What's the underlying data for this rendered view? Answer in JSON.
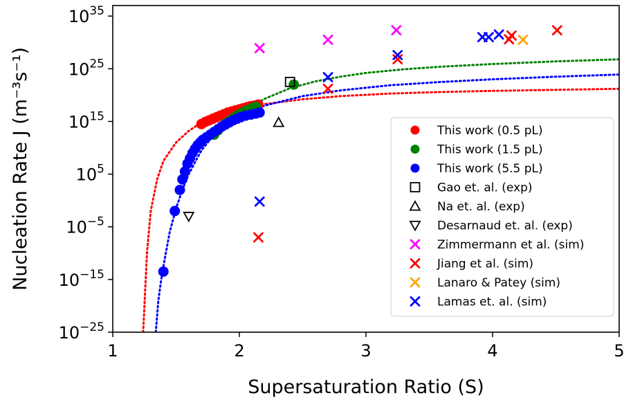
{
  "chart_data": {
    "type": "scatter",
    "title": "",
    "xlabel": "Supersaturation Ratio (S)",
    "ylabel": "Nucleation Rate J (m⁻³s⁻¹)",
    "xlim": [
      1,
      5
    ],
    "ylim_log10": [
      -25,
      37
    ],
    "y_scale": "log",
    "grid": false,
    "legend_position": "lower-right",
    "x_ticks": [
      {
        "value": 1,
        "label": "1"
      },
      {
        "value": 2,
        "label": "2"
      },
      {
        "value": 3,
        "label": "3"
      },
      {
        "value": 4,
        "label": "4"
      },
      {
        "value": 5,
        "label": "5"
      }
    ],
    "y_ticks": [
      {
        "exp": -25,
        "base": "10",
        "sup": "−25"
      },
      {
        "exp": -15,
        "base": "10",
        "sup": "−15"
      },
      {
        "exp": -5,
        "base": "10",
        "sup": "−5"
      },
      {
        "exp": 5,
        "base": "10",
        "sup": "5"
      },
      {
        "exp": 15,
        "base": "10",
        "sup": "15"
      },
      {
        "exp": 25,
        "base": "10",
        "sup": "25"
      },
      {
        "exp": 35,
        "base": "10",
        "sup": "35"
      }
    ],
    "series": [
      {
        "name": "This work (0.5 pL)",
        "marker": "circle",
        "color": "#ff0000",
        "x": [
          1.7,
          1.73,
          1.76,
          1.79,
          1.82,
          1.85,
          1.88,
          1.91,
          1.94,
          1.97,
          2.0,
          2.03,
          2.06,
          2.09,
          2.12,
          2.15
        ],
        "log10_y": [
          14.5,
          14.9,
          15.2,
          15.5,
          15.8,
          16.1,
          16.4,
          16.7,
          16.9,
          17.1,
          17.3,
          17.5,
          17.7,
          17.9,
          18.0,
          18.2
        ]
      },
      {
        "name": "This work (1.5 pL)",
        "marker": "circle",
        "color": "#008000",
        "x": [
          1.8,
          1.83,
          1.86,
          1.89,
          1.92,
          1.95,
          1.98,
          2.01,
          2.04,
          2.07,
          2.1,
          2.13,
          2.43
        ],
        "log10_y": [
          12.5,
          13.3,
          14.0,
          14.6,
          15.1,
          15.6,
          16.1,
          16.5,
          16.9,
          17.2,
          17.5,
          17.8,
          22.0
        ]
      },
      {
        "name": "This work (5.5 pL)",
        "marker": "circle",
        "color": "#0000ff",
        "x": [
          1.4,
          1.49,
          1.53,
          1.55,
          1.57,
          1.59,
          1.61,
          1.63,
          1.65,
          1.67,
          1.69,
          1.71,
          1.74,
          1.77,
          1.8,
          1.83,
          1.86,
          1.89,
          1.92,
          1.95,
          1.98,
          2.01,
          2.05,
          2.09,
          2.13,
          2.16
        ],
        "log10_y": [
          -13.5,
          -2.0,
          2.0,
          4.0,
          5.5,
          7.0,
          8.0,
          9.0,
          9.8,
          10.5,
          11.0,
          11.5,
          12.0,
          12.5,
          13.0,
          13.5,
          14.0,
          14.4,
          14.8,
          15.2,
          15.5,
          15.8,
          16.1,
          16.3,
          16.5,
          16.7
        ]
      },
      {
        "name": "Gao et. al. (exp)",
        "marker": "square-open",
        "color": "#000000",
        "x": [
          2.4
        ],
        "log10_y": [
          22.5
        ]
      },
      {
        "name": "Na et. al. (exp)",
        "marker": "triangle-up-open",
        "color": "#000000",
        "x": [
          2.31
        ],
        "log10_y": [
          14.8
        ]
      },
      {
        "name": "Desarnaud et. al. (exp)",
        "marker": "triangle-down-open",
        "color": "#000000",
        "x": [
          1.6
        ],
        "log10_y": [
          -3.0
        ]
      },
      {
        "name": "Zimmermann et al. (sim)",
        "marker": "x",
        "color": "#ff00ff",
        "x": [
          2.16,
          2.7,
          3.24
        ],
        "log10_y": [
          28.9,
          30.5,
          32.3
        ]
      },
      {
        "name": "Jiang et al. (sim)",
        "marker": "x",
        "color": "#ff0000",
        "x": [
          2.15,
          2.7,
          3.25,
          4.13,
          4.15,
          4.51
        ],
        "log10_y": [
          -7.0,
          21.2,
          26.8,
          30.6,
          31.3,
          32.3
        ]
      },
      {
        "name": "Lanaro & Patey (sim)",
        "marker": "x",
        "color": "#ffa500",
        "x": [
          4.24
        ],
        "log10_y": [
          30.5
        ]
      },
      {
        "name": "Lamas et. al. (sim)",
        "marker": "x",
        "color": "#0000ff",
        "x": [
          2.16,
          2.7,
          3.25,
          3.92,
          3.97,
          4.05
        ],
        "log10_y": [
          -0.2,
          23.4,
          27.6,
          31.0,
          31.0,
          31.5
        ]
      }
    ],
    "fit_curves": [
      {
        "color": "#ff0000",
        "x": [
          1.24,
          1.25,
          1.27,
          1.3,
          1.35,
          1.4,
          1.5,
          1.6,
          1.7,
          1.8,
          2.0,
          2.2,
          2.5,
          2.8,
          3.2,
          3.6,
          4.0,
          4.5,
          5.0
        ],
        "log10_y": [
          -25,
          -20,
          -10,
          -2,
          4,
          7.5,
          11,
          13.2,
          14.8,
          16,
          17.5,
          18.3,
          19.2,
          19.8,
          20.3,
          20.6,
          20.8,
          21,
          21.2
        ]
      },
      {
        "color": "#008000",
        "x": [
          1.85,
          2.0,
          2.2,
          2.4,
          2.6,
          2.8,
          3.0,
          3.3,
          3.6,
          4.0,
          4.5,
          5.0
        ],
        "log10_y": [
          13.5,
          16.5,
          19.3,
          21.3,
          22.6,
          23.5,
          24.2,
          24.9,
          25.4,
          25.9,
          26.4,
          26.8
        ]
      },
      {
        "color": "#0000ff",
        "x": [
          1.34,
          1.36,
          1.38,
          1.4,
          1.45,
          1.5,
          1.55,
          1.6,
          1.7,
          1.8,
          2.0,
          2.2,
          2.5,
          2.8,
          3.2,
          3.6,
          4.0,
          4.5,
          5.0
        ],
        "log10_y": [
          -25,
          -19,
          -15.5,
          -12.5,
          -6,
          -1.5,
          2,
          5,
          9.5,
          12.5,
          16,
          18,
          19.8,
          20.9,
          21.9,
          22.5,
          23,
          23.5,
          23.9
        ]
      }
    ]
  }
}
